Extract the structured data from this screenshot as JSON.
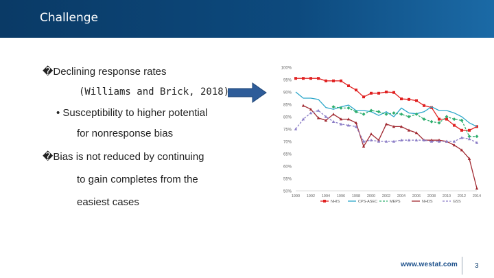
{
  "slide": {
    "title": "Challenge",
    "bullets": [
      "�Declining response rates",
      "(Williams and Brick, 2018)",
      "• Susceptibility to higher potential",
      "for nonresponse bias",
      "�Bias is not reduced by continuing",
      "to gain completes from the",
      "easiest cases"
    ],
    "arrow_icon": "right-arrow-icon",
    "footer_url": "www.westat.com",
    "page_number": "3"
  },
  "colors": {
    "header": "#0d4a7e",
    "arrow": "#2e5c99",
    "nhis": "#e02020",
    "cps_asec": "#2aa6c9",
    "meps": "#2fae6e",
    "nhds": "#a02830",
    "gss": "#8a7cc6"
  },
  "chart_data": {
    "type": "line",
    "x": [
      1990,
      1991,
      1992,
      1993,
      1994,
      1995,
      1996,
      1997,
      1998,
      1999,
      2000,
      2001,
      2002,
      2003,
      2004,
      2005,
      2006,
      2007,
      2008,
      2009,
      2010,
      2011,
      2012,
      2013,
      2014
    ],
    "xticks": [
      "1990",
      "1992",
      "1994",
      "1996",
      "1998",
      "2000",
      "2002",
      "2004",
      "2006",
      "2008",
      "2010",
      "2012",
      "2014"
    ],
    "yticks": [
      "100%",
      "95%",
      "90%",
      "85%",
      "80%",
      "75%",
      "70%",
      "65%",
      "60%",
      "55%",
      "50%"
    ],
    "ylim": [
      50,
      100
    ],
    "legend_position": "bottom",
    "grid": false,
    "series": [
      {
        "name": "NHIS",
        "color_key": "nhis",
        "marker": "square",
        "dash": "solid",
        "values": [
          95.5,
          95.5,
          95.5,
          95.5,
          94.5,
          94.5,
          94.5,
          92.5,
          90.8,
          88.0,
          89.5,
          89.5,
          90.0,
          89.8,
          87.2,
          87.0,
          86.5,
          84.5,
          83.7,
          79.0,
          79.0,
          76.5,
          74.5,
          74.5,
          76.0
        ]
      },
      {
        "name": "CPS-ASEC",
        "color_key": "cps_asec",
        "marker": "none",
        "dash": "solid",
        "values": [
          90.0,
          87.5,
          87.5,
          87.0,
          83.7,
          83.0,
          84.0,
          84.7,
          82.5,
          82.5,
          82.0,
          80.5,
          82.0,
          80.0,
          83.5,
          81.5,
          81.2,
          82.0,
          84.0,
          82.5,
          82.5,
          81.5,
          80.0,
          77.5,
          76.0
        ]
      },
      {
        "name": "MEPS",
        "color_key": "meps",
        "marker": "diamond",
        "dash": "dashed",
        "values": [
          null,
          null,
          null,
          null,
          null,
          84.0,
          83.5,
          83.5,
          82.0,
          81.0,
          82.5,
          82.0,
          81.0,
          81.5,
          81.0,
          80.0,
          81.0,
          79.0,
          78.0,
          77.5,
          80.0,
          79.0,
          78.5,
          72.0,
          72.0
        ]
      },
      {
        "name": "NHDS",
        "color_key": "nhds",
        "marker": "triangle",
        "dash": "solid",
        "values": [
          null,
          84.5,
          83.0,
          79.5,
          78.5,
          81.0,
          79.0,
          79.0,
          77.5,
          68.0,
          73.0,
          70.5,
          77.0,
          76.0,
          76.0,
          74.5,
          73.5,
          70.5,
          70.5,
          70.5,
          70.0,
          68.5,
          66.5,
          63.0,
          51.0
        ]
      },
      {
        "name": "GSS",
        "color_key": "gss",
        "marker": "triangle",
        "dash": "dashed",
        "values": [
          75.0,
          79.0,
          81.5,
          82.5,
          80.0,
          78.0,
          77.0,
          76.5,
          76.0,
          70.0,
          70.5,
          70.0,
          70.0,
          70.0,
          70.5,
          70.5,
          70.5,
          70.5,
          70.0,
          70.0,
          70.0,
          70.0,
          71.5,
          71.0,
          69.5
        ]
      }
    ]
  }
}
